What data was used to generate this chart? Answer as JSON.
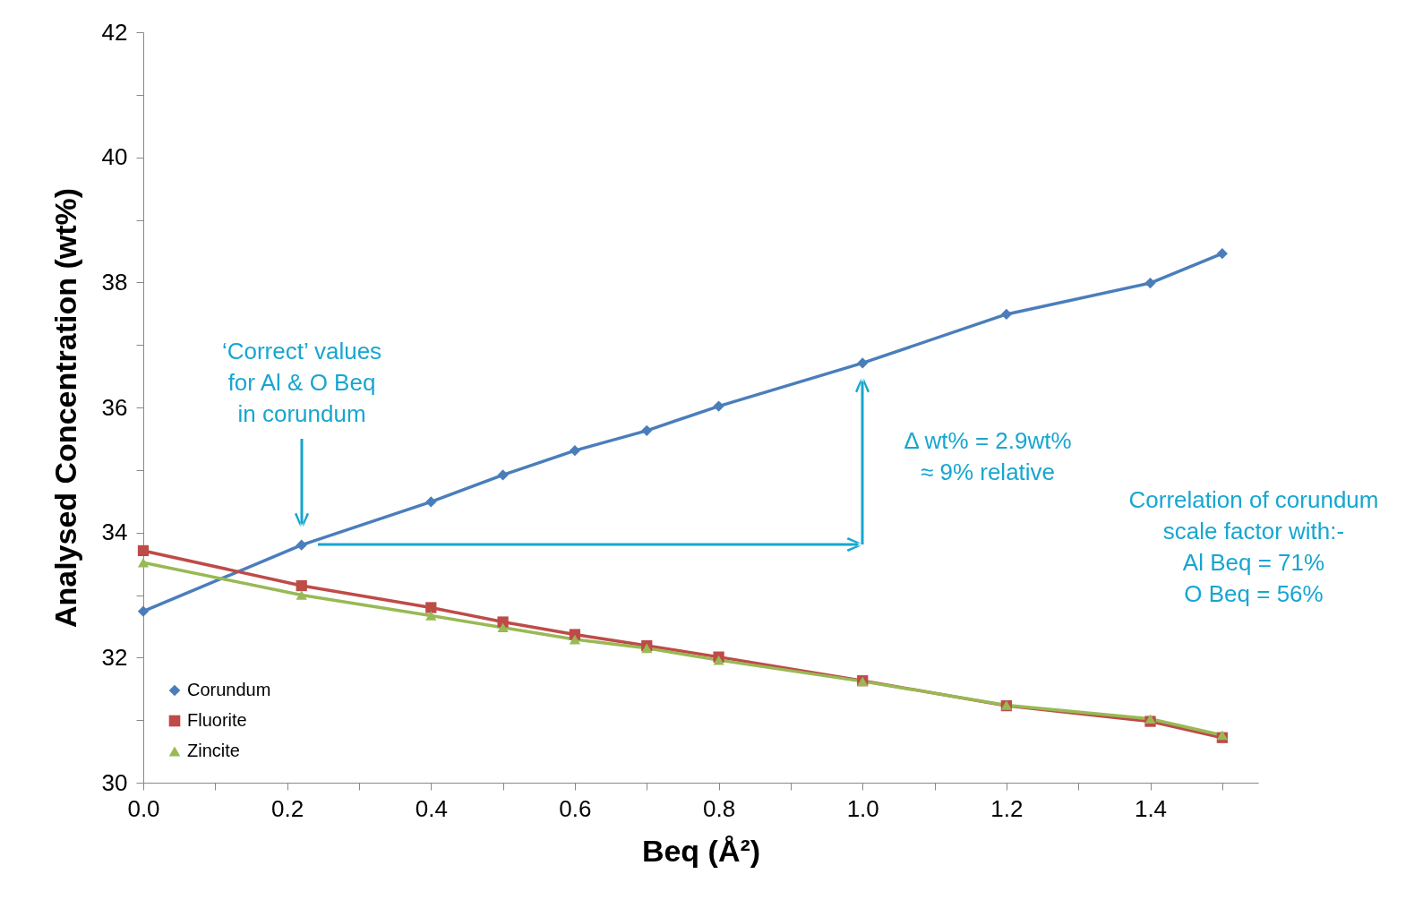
{
  "chart_data": {
    "type": "line",
    "xlabel": "Beq (Å²)",
    "ylabel": "Analysed Concentration (wt%)",
    "x": [
      0,
      0.22,
      0.4,
      0.5,
      0.6,
      0.7,
      0.8,
      1.0,
      1.2,
      1.4,
      1.5
    ],
    "series": [
      {
        "name": "Corundum",
        "color": "#4a7ebb",
        "marker": "diamond",
        "values": [
          32.74,
          33.8,
          34.49,
          34.92,
          35.31,
          35.63,
          36.02,
          36.71,
          37.49,
          37.99,
          38.46
        ]
      },
      {
        "name": "Fluorite",
        "color": "#be4b48",
        "marker": "square",
        "values": [
          33.71,
          33.15,
          32.8,
          32.57,
          32.37,
          32.19,
          32.01,
          31.63,
          31.23,
          30.98,
          30.72
        ]
      },
      {
        "name": "Zincite",
        "color": "#98b954",
        "marker": "triangle",
        "values": [
          33.52,
          33.0,
          32.67,
          32.48,
          32.29,
          32.15,
          31.96,
          31.62,
          31.24,
          31.02,
          30.76
        ]
      }
    ],
    "xlim": [
      0,
      1.55
    ],
    "xticks": [
      {
        "value": 0,
        "label": "0.0"
      },
      {
        "value": 0.1,
        "label": null
      },
      0.2,
      {
        "value": 0.3,
        "label": null
      },
      0.4,
      {
        "value": 0.5,
        "label": null
      },
      0.6,
      {
        "value": 0.7,
        "label": null
      },
      0.8,
      {
        "value": 0.9,
        "label": null
      },
      {
        "value": 1.0,
        "label": "1.0"
      },
      {
        "value": 1.1,
        "label": null
      },
      1.2,
      {
        "value": 1.3,
        "label": null
      },
      1.4,
      {
        "value": 1.5,
        "label": null
      }
    ],
    "ylim": [
      30,
      42
    ],
    "yticks": [
      30,
      {
        "value": 31,
        "label": null
      },
      32,
      {
        "value": 33,
        "label": null
      },
      34,
      {
        "value": 35,
        "label": null
      },
      36,
      {
        "value": 37,
        "label": null
      },
      38,
      {
        "value": 39,
        "label": null
      },
      40,
      {
        "value": 41,
        "label": null
      },
      42
    ],
    "annotations": [
      "‘Correct’ values\nfor Al & O Beq\nin corundum",
      "Δ wt% = 2.9wt%\n≈ 9% relative",
      "Correlation of corundum\nscale factor with:-\nAl Beq = 71%\nO  Beq = 56%"
    ],
    "legend": "bottom left",
    "grid": false,
    "line_style": "solid"
  }
}
